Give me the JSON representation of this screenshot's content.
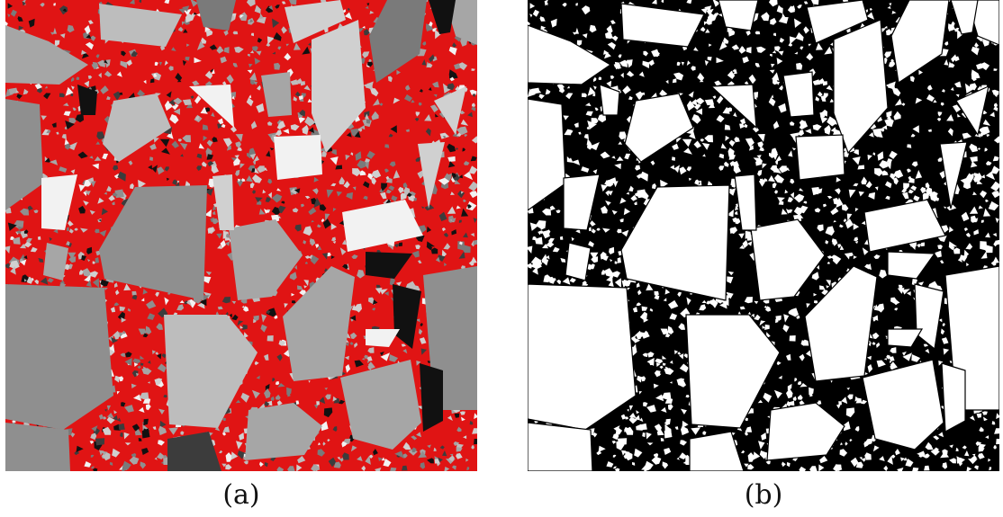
{
  "figure": {
    "panels": [
      {
        "label": "(a)",
        "description": "aggregate",
        "colors": {
          "matrix": "#e01414",
          "aggregate_shades": [
            "#7a7a7a",
            "#8f8f8f",
            "#a6a6a6",
            "#bdbdbd",
            "#d0d0d0",
            "#f2f2f2",
            "#111111",
            "#3c3c3c"
          ]
        }
      },
      {
        "label": "(b)",
        "description": "mask",
        "colors": {
          "background": "#ffffff",
          "mesh": "#000000"
        }
      }
    ]
  }
}
